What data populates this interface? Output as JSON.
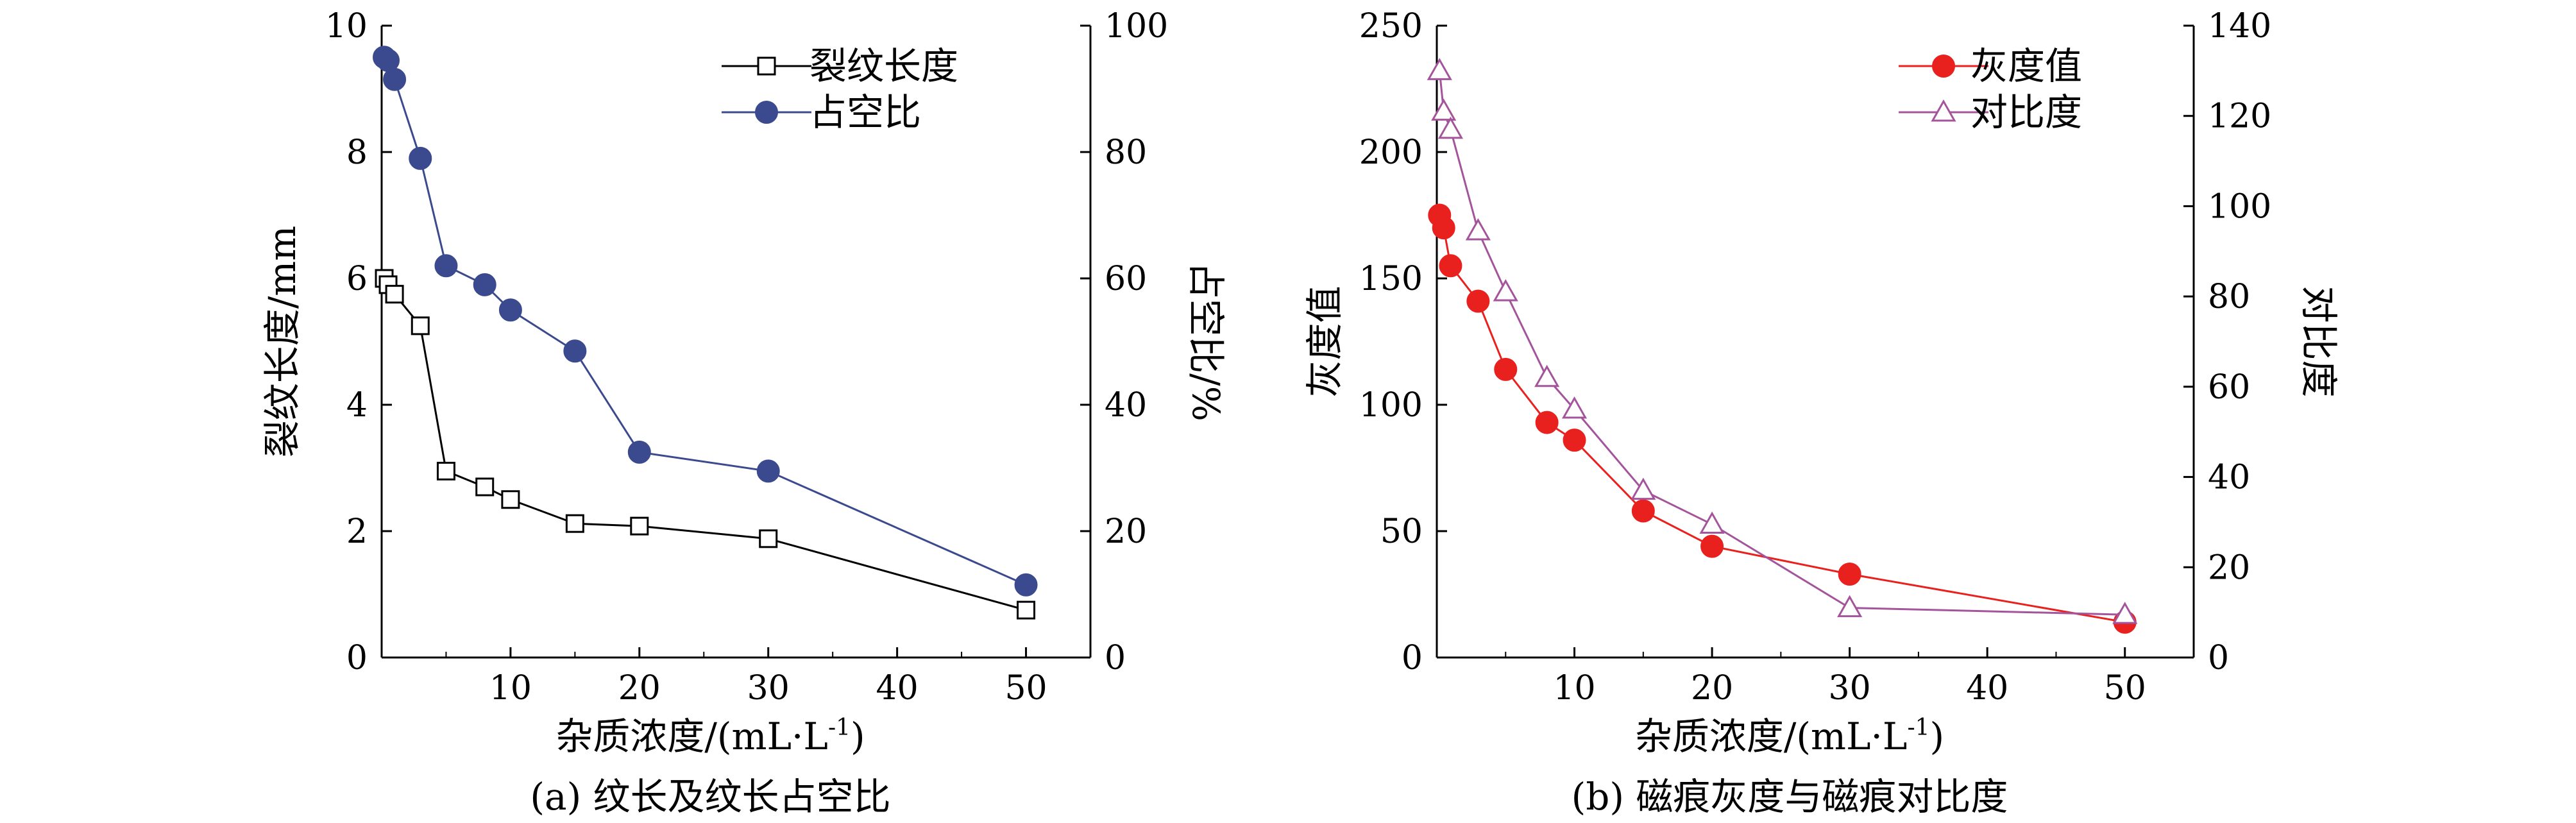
{
  "chart_data": [
    {
      "id": "a",
      "type": "line",
      "caption": "(a) 纹长及纹长占空比",
      "xlabel": "杂质浓度/(mL·L",
      "xlabel_sup": "-1",
      "xlabel_tail": ")",
      "ylabel_left": "裂纹长度/mm",
      "ylabel_right": "占空比/%",
      "xlim": [
        0,
        55
      ],
      "ylim_left": [
        0,
        10
      ],
      "ylim_right": [
        0,
        100
      ],
      "x_ticks": [
        "10",
        "20",
        "30",
        "40",
        "50"
      ],
      "y_ticks_left": [
        "0",
        "2",
        "4",
        "6",
        "8",
        "10"
      ],
      "y_ticks_right": [
        "0",
        "20",
        "40",
        "60",
        "80",
        "100"
      ],
      "legend_position": "top-right",
      "series": [
        {
          "name": "裂纹长度",
          "axis": "left",
          "color": "#000000",
          "marker": "open-square",
          "x": [
            0.2,
            0.5,
            1,
            3,
            5,
            8,
            10,
            15,
            20,
            30,
            50
          ],
          "y": [
            6.0,
            5.9,
            5.75,
            5.25,
            2.95,
            2.7,
            2.5,
            2.12,
            2.08,
            1.88,
            0.75
          ]
        },
        {
          "name": "占空比",
          "axis": "right",
          "color": "#3b4a8e",
          "marker": "filled-circle",
          "x": [
            0.2,
            0.5,
            1,
            3,
            5,
            8,
            10,
            15,
            20,
            30,
            50
          ],
          "y": [
            95,
            94.5,
            91.5,
            79,
            62,
            59,
            55,
            48.5,
            32.5,
            29.5,
            11.5
          ]
        }
      ]
    },
    {
      "id": "b",
      "type": "line",
      "caption": "(b) 磁痕灰度与磁痕对比度",
      "xlabel": "杂质浓度/(mL·L",
      "xlabel_sup": "-1",
      "xlabel_tail": ")",
      "ylabel_left": "灰度值",
      "ylabel_right": "对比度",
      "xlim": [
        0,
        55
      ],
      "ylim_left": [
        0,
        250
      ],
      "ylim_right": [
        0,
        140
      ],
      "x_ticks": [
        "10",
        "20",
        "30",
        "40",
        "50"
      ],
      "y_ticks_left": [
        "0",
        "50",
        "100",
        "150",
        "200",
        "250"
      ],
      "y_ticks_right": [
        "0",
        "20",
        "40",
        "60",
        "80",
        "100",
        "120",
        "140"
      ],
      "legend_position": "top-right",
      "series": [
        {
          "name": "灰度值",
          "axis": "left",
          "color": "#e8211f",
          "marker": "filled-circle",
          "x": [
            0.2,
            0.5,
            1,
            3,
            5,
            8,
            10,
            15,
            20,
            30,
            50
          ],
          "y": [
            175,
            170,
            155,
            141,
            114,
            93,
            86,
            58,
            44,
            33,
            14
          ]
        },
        {
          "name": "对比度",
          "axis": "right",
          "color": "#a4549b",
          "marker": "open-triangle",
          "x": [
            0.2,
            0.5,
            1,
            3,
            5,
            8,
            10,
            15,
            20,
            30,
            50
          ],
          "y": [
            130,
            121,
            117,
            94.5,
            81,
            62,
            55,
            37,
            29.5,
            11,
            9.5
          ]
        }
      ]
    }
  ]
}
